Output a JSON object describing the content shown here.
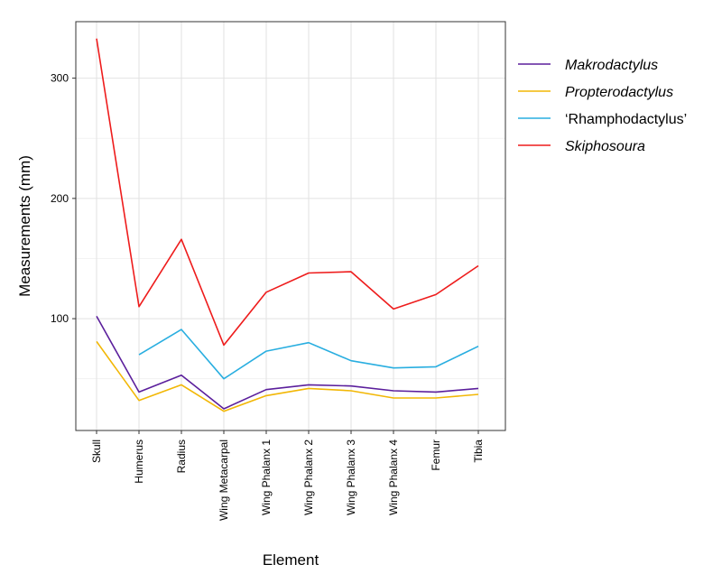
{
  "chart_data": {
    "type": "line",
    "xlabel": "Element",
    "ylabel": "Measurements (mm)",
    "categories": [
      "Skull",
      "Humerus",
      "Radius",
      "Wing Metacarpal",
      "Wing Phalanx 1",
      "Wing Phalanx 2",
      "Wing Phalanx 3",
      "Wing Phalanx 4",
      "Femur",
      "Tibia"
    ],
    "ylim": [
      7,
      347
    ],
    "yticks": [
      100,
      200,
      300
    ],
    "grid": true,
    "legend_position": "right",
    "series": [
      {
        "name": "Makrodactylus",
        "italic": true,
        "color": "#5b1f9c",
        "values": [
          102,
          39,
          53,
          25,
          41,
          45,
          44,
          40,
          39,
          42
        ]
      },
      {
        "name": "Propterodactylus",
        "italic": true,
        "color": "#f2b705",
        "values": [
          81,
          32,
          45,
          23,
          36,
          42,
          40,
          34,
          34,
          37
        ]
      },
      {
        "name": "‘Rhamphodactylus’",
        "italic": false,
        "color": "#29aee0",
        "values": [
          null,
          70,
          91,
          50,
          73,
          80,
          65,
          59,
          60,
          77
        ]
      },
      {
        "name": "Skiphosoura",
        "italic": true,
        "color": "#ee1c1c",
        "values": [
          333,
          110,
          166,
          78,
          122,
          138,
          139,
          108,
          120,
          144
        ]
      }
    ]
  }
}
